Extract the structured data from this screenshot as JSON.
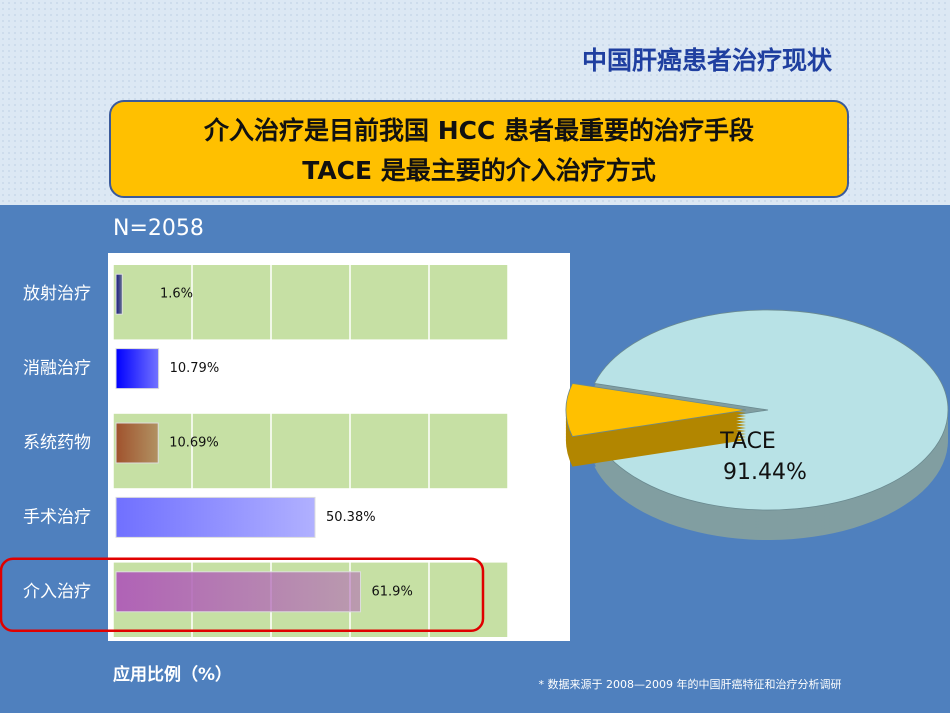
{
  "header": {
    "title": "中国肝癌患者治疗现状"
  },
  "callout": {
    "lines": [
      "介入治疗是目前我国 HCC 患者最重要的治疗手段",
      "TACE 是最主要的介入治疗方式"
    ]
  },
  "chart_data": [
    {
      "type": "hbar",
      "subtitle": "N=2058",
      "x_label": "应用比例（%）",
      "categories": [
        "放射治疗",
        "消融治疗",
        "系统药物",
        "手术治疗",
        "介入治疗"
      ],
      "values": [
        1.6,
        10.79,
        10.69,
        50.38,
        61.9
      ],
      "value_labels": [
        "1.6%",
        "10.79%",
        "10.69%",
        "50.38%",
        "61.9%"
      ],
      "colors": [
        "#1a1a80",
        "#0000ff",
        "#a0522d",
        "#7070ff",
        "#b062b6"
      ],
      "xlim": [
        0,
        100
      ],
      "xticks": [
        0,
        20,
        40,
        60,
        80,
        100
      ],
      "grid": true,
      "highlight": "介入治疗"
    },
    {
      "type": "pie",
      "labels": [
        "TACE",
        null
      ],
      "values": [
        91.44,
        8.56
      ],
      "value_labels": [
        "91.44%",
        null
      ],
      "colors": [
        "#b8e2e6",
        "#ffc000"
      ]
    }
  ],
  "footnote": "*  数据来源于 2008—2009 年的中国肝癌特征和治疗分析调研"
}
